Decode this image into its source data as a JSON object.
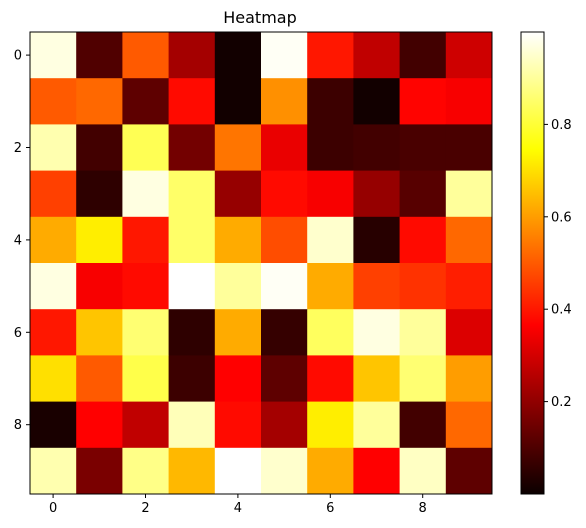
{
  "chart_data": {
    "type": "heatmap",
    "title": "Heatmap",
    "colormap": "hot",
    "x": [
      0,
      1,
      2,
      3,
      4,
      5,
      6,
      7,
      8,
      9
    ],
    "y": [
      0,
      1,
      2,
      3,
      4,
      5,
      6,
      7,
      8,
      9
    ],
    "xticks": [
      "0",
      "2",
      "4",
      "6",
      "8"
    ],
    "yticks": [
      "0",
      "2",
      "4",
      "6",
      "8"
    ],
    "values": [
      [
        0.97,
        0.1,
        0.5,
        0.22,
        0.01,
        0.99,
        0.4,
        0.26,
        0.08,
        0.28
      ],
      [
        0.5,
        0.52,
        0.12,
        0.38,
        0.01,
        0.58,
        0.07,
        0.01,
        0.37,
        0.34
      ],
      [
        0.92,
        0.08,
        0.83,
        0.15,
        0.54,
        0.32,
        0.07,
        0.08,
        0.09,
        0.09
      ],
      [
        0.46,
        0.05,
        0.97,
        0.85,
        0.2,
        0.38,
        0.34,
        0.2,
        0.11,
        0.9
      ],
      [
        0.62,
        0.72,
        0.4,
        0.85,
        0.62,
        0.48,
        0.95,
        0.04,
        0.38,
        0.52
      ],
      [
        0.97,
        0.34,
        0.38,
        1.0,
        0.9,
        0.99,
        0.62,
        0.46,
        0.44,
        0.41
      ],
      [
        0.4,
        0.66,
        0.86,
        0.05,
        0.62,
        0.06,
        0.84,
        0.97,
        0.9,
        0.3
      ],
      [
        0.7,
        0.5,
        0.82,
        0.07,
        0.35,
        0.12,
        0.38,
        0.66,
        0.86,
        0.6
      ],
      [
        0.02,
        0.36,
        0.26,
        0.93,
        0.38,
        0.22,
        0.72,
        0.9,
        0.08,
        0.52
      ],
      [
        0.92,
        0.16,
        0.88,
        0.64,
        1.0,
        0.95,
        0.62,
        0.36,
        0.94,
        0.12
      ]
    ],
    "colorbar": {
      "range": [
        0.0,
        1.0
      ],
      "ticks": [
        0.2,
        0.4,
        0.6,
        0.8
      ],
      "tick_labels": [
        "0.2",
        "0.4",
        "0.6",
        "0.8"
      ]
    },
    "grid": false,
    "legend": "colorbar-right"
  }
}
